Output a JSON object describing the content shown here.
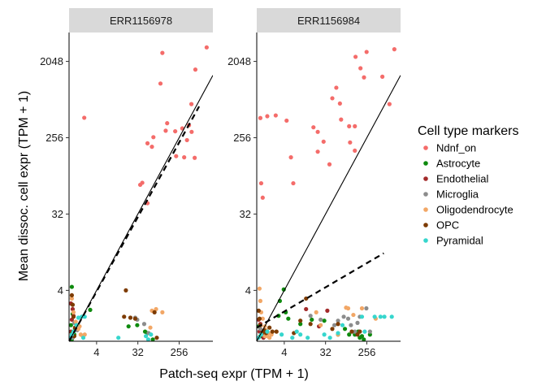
{
  "colors": {
    "Ndndf_on": "#f46c6a",
    "Astrocyte": "#0e8a0e",
    "Endothelial": "#a32a2a",
    "Microglia": "#8c8c8c",
    "Oligodendrocyte": "#f2a766",
    "OPC": "#7d3b00",
    "Pyramidal": "#36d6cd",
    "strip_fill": "#d9d9d9",
    "axis_line": "#000000"
  },
  "chart_data": {
    "type": "scatter",
    "facets": [
      "ERR1156978",
      "ERR1156984"
    ],
    "xlabel": "Patch-seq expr (TPM + 1)",
    "ylabel": "Mean dissoc. cell expr (TPM + 1)",
    "x_scale": "log2",
    "y_scale": "log2",
    "xlim": [
      1,
      1400
    ],
    "ylim": [
      1,
      4500
    ],
    "x_ticks": [
      {
        "value": 4,
        "label": "4"
      },
      {
        "value": 32,
        "label": "32"
      },
      {
        "value": 256,
        "label": "256"
      }
    ],
    "y_ticks": [
      {
        "value": 4,
        "label": "4"
      },
      {
        "value": 32,
        "label": "32"
      },
      {
        "value": 256,
        "label": "256"
      },
      {
        "value": 2048,
        "label": "2048"
      }
    ],
    "grid": false,
    "legend": {
      "title": "Cell type markers",
      "position": "right",
      "entries": [
        "Ndnf_on",
        "Astrocyte",
        "Endothelial",
        "Microglia",
        "Oligodendrocyte",
        "OPC",
        "Pyramidal"
      ],
      "color_keys": [
        "Ndndf_on",
        "Astrocyte",
        "Endothelial",
        "Microglia",
        "Oligodendrocyte",
        "OPC",
        "Pyramidal"
      ]
    },
    "reference_lines": [
      {
        "kind": "identity",
        "style": "solid",
        "slope": 1,
        "intercept": 0
      },
      {
        "kind": "fit",
        "style": "dashed"
      }
    ],
    "panels": [
      {
        "name": "ERR1156978",
        "fit_line": {
          "x": [
            1,
            700
          ],
          "y": [
            1,
            600
          ]
        },
        "series": [
          {
            "name": "Ndnf_on",
            "color_key": "Ndndf_on",
            "points": [
              [
                2.15,
                441
              ],
              [
                1024,
                3000
              ],
              [
                110,
                2580
              ],
              [
                580,
                1640
              ],
              [
                475,
                640
              ],
              [
                100,
                1120
              ],
              [
                140,
                380
              ],
              [
                130,
                310
              ],
              [
                210,
                305
              ],
              [
                300,
                330
              ],
              [
                420,
                360
              ],
              [
                480,
                300
              ],
              [
                380,
                240
              ],
              [
                65,
                200
              ],
              [
                52,
                220
              ],
              [
                70,
                260
              ],
              [
                220,
                155
              ],
              [
                330,
                150
              ],
              [
                560,
                148
              ],
              [
                36,
                71
              ],
              [
                40,
                75
              ],
              [
                52,
                43
              ]
            ]
          },
          {
            "name": "Astrocyte",
            "color_key": "Astrocyte",
            "points": [
              [
                1.15,
                4.4
              ],
              [
                1.2,
                2.1
              ],
              [
                1.1,
                1.55
              ],
              [
                1.3,
                1.2
              ],
              [
                1.22,
                1.15
              ],
              [
                1.35,
                1.4
              ],
              [
                1.15,
                1.05
              ],
              [
                2.9,
                2.35
              ],
              [
                20,
                1.5
              ],
              [
                31,
                1.55
              ],
              [
                52,
                1.25
              ],
              [
                68,
                1.05
              ],
              [
                46,
                1.3
              ]
            ]
          },
          {
            "name": "Endothelial",
            "color_key": "Endothelial",
            "points": [
              [
                1.1,
                2.8
              ],
              [
                1.2,
                2.4
              ],
              [
                1.15,
                1.8
              ],
              [
                1.25,
                2.0
              ],
              [
                1.1,
                1.3
              ]
            ]
          },
          {
            "name": "Microglia",
            "color_key": "Microglia",
            "points": [
              [
                28,
                1.9
              ],
              [
                31,
                1.8
              ],
              [
                44,
                1.6
              ],
              [
                55,
                1.25
              ],
              [
                1.3,
                1.65
              ],
              [
                1.5,
                1.35
              ],
              [
                1.2,
                1.1
              ]
            ]
          },
          {
            "name": "Oligodendrocyte",
            "color_key": "Oligodendrocyte",
            "points": [
              [
                1.15,
                3.2
              ],
              [
                1.25,
                2.2
              ],
              [
                1.4,
                1.7
              ],
              [
                1.6,
                1.4
              ],
              [
                1.8,
                1.2
              ],
              [
                2.0,
                1.15
              ],
              [
                2.2,
                1.2
              ],
              [
                1.7,
                1.5
              ],
              [
                60,
                1.45
              ],
              [
                65,
                2.3
              ],
              [
                80,
                2.4
              ],
              [
                110,
                2.2
              ]
            ]
          },
          {
            "name": "OPC",
            "color_key": "OPC",
            "points": [
              [
                1.15,
                3.5
              ],
              [
                1.2,
                2.7
              ],
              [
                1.25,
                1.95
              ],
              [
                1.35,
                1.45
              ],
              [
                1.15,
                1.25
              ],
              [
                1.3,
                1.15
              ],
              [
                17.5,
                4.0
              ],
              [
                16,
                1.95
              ],
              [
                22,
                1.9
              ],
              [
                74,
                2.2
              ],
              [
                83,
                1.1
              ],
              [
                28,
                1.85
              ]
            ]
          },
          {
            "name": "Pyramidal",
            "color_key": "Pyramidal",
            "points": [
              [
                1.6,
                1.9
              ],
              [
                1.9,
                1.95
              ],
              [
                2.2,
                1.95
              ],
              [
                1.45,
                1.55
              ],
              [
                1.25,
                1.3
              ],
              [
                1.05,
                1.1
              ],
              [
                1.15,
                1.2
              ],
              [
                2.05,
                1.1
              ],
              [
                12,
                1.1
              ],
              [
                48,
                1.15
              ],
              [
                54,
                1.05
              ],
              [
                62,
                1.2
              ]
            ]
          }
        ]
      },
      {
        "name": "ERR1156984",
        "fit_line": {
          "x": [
            1,
            600
          ],
          "y": [
            1.45,
            11
          ]
        },
        "series": [
          {
            "name": "Ndnf_on",
            "color_key": "Ndndf_on",
            "points": [
              [
                1.2,
                438
              ],
              [
                1.25,
                74
              ],
              [
                1.35,
                50
              ],
              [
                1.7,
                460
              ],
              [
                2.6,
                470
              ],
              [
                4.5,
                408
              ],
              [
                5.6,
                150
              ],
              [
                6.3,
                74
              ],
              [
                17.4,
                340
              ],
              [
                21.6,
                300
              ],
              [
                21.6,
                175
              ],
              [
                29,
                230
              ],
              [
                39,
                124
              ],
              [
                45,
                750
              ],
              [
                55,
                1000
              ],
              [
                66,
                650
              ],
              [
                70,
                420
              ],
              [
                105,
                350
              ],
              [
                110,
                225
              ],
              [
                140,
                180
              ],
              [
                145,
                2320
              ],
              [
                186,
                1700
              ],
              [
                222,
                1325
              ],
              [
                253,
                2650
              ],
              [
                560,
                1350
              ],
              [
                800,
                640
              ],
              [
                1024,
                2850
              ],
              [
                140,
                350
              ]
            ]
          },
          {
            "name": "Astrocyte",
            "color_key": "Astrocyte",
            "points": [
              [
                1.1,
                1.5
              ],
              [
                1.2,
                1.15
              ],
              [
                1.3,
                1.3
              ],
              [
                3.9,
                4.1
              ],
              [
                3.2,
                3.0
              ],
              [
                3.0,
                2.0
              ],
              [
                4.3,
                2.2
              ],
              [
                4.9,
                1.85
              ],
              [
                9,
                1.6
              ],
              [
                16,
                1.8
              ],
              [
                30,
                1.75
              ],
              [
                60,
                1.2
              ],
              [
                85,
                1.4
              ],
              [
                105,
                1.2
              ],
              [
                140,
                1.2
              ],
              [
                166,
                1.3
              ],
              [
                180,
                1.1
              ],
              [
                200,
                1.15
              ],
              [
                220,
                1.05
              ],
              [
                300,
                1.2
              ]
            ]
          },
          {
            "name": "Endothelial",
            "color_key": "Endothelial",
            "points": [
              [
                1.1,
                1.8
              ],
              [
                1.2,
                1.6
              ],
              [
                1.3,
                1.2
              ],
              [
                1.15,
                1.3
              ],
              [
                1.4,
                1.1
              ],
              [
                12,
                2.4
              ],
              [
                35,
                2.3
              ],
              [
                23,
                1.5
              ]
            ]
          },
          {
            "name": "Microglia",
            "color_key": "Microglia",
            "points": [
              [
                1.2,
                1.4
              ],
              [
                15,
                2.0
              ],
              [
                25,
                1.8
              ],
              [
                50,
                1.55
              ],
              [
                60,
                1.75
              ],
              [
                80,
                1.95
              ],
              [
                100,
                1.85
              ],
              [
                115,
                1.55
              ],
              [
                140,
                1.3
              ],
              [
                160,
                1.65
              ],
              [
                180,
                1.95
              ],
              [
                250,
                2.45
              ],
              [
                300,
                1.3
              ]
            ]
          },
          {
            "name": "Oligodendrocyte",
            "color_key": "Oligodendrocyte",
            "points": [
              [
                1.15,
                4.2
              ],
              [
                1.2,
                3.0
              ],
              [
                1.25,
                2.2
              ],
              [
                1.35,
                1.85
              ],
              [
                1.5,
                1.5
              ],
              [
                1.6,
                1.35
              ],
              [
                1.7,
                1.15
              ],
              [
                1.8,
                1.25
              ],
              [
                1.9,
                1.1
              ],
              [
                2.1,
                1.2
              ],
              [
                20,
                2.2
              ],
              [
                25,
                1.55
              ],
              [
                60,
                1.2
              ],
              [
                90,
                2.5
              ],
              [
                100,
                2.45
              ],
              [
                130,
                2.05
              ],
              [
                200,
                2.45
              ],
              [
                400,
                1.85
              ],
              [
                1.5,
                1.15
              ]
            ]
          },
          {
            "name": "OPC",
            "color_key": "OPC",
            "points": [
              [
                1.1,
                2.3
              ],
              [
                1.15,
                1.85
              ],
              [
                1.2,
                1.55
              ],
              [
                1.3,
                1.25
              ],
              [
                1.45,
                1.35
              ],
              [
                1.6,
                1.25
              ],
              [
                1.9,
                1.45
              ],
              [
                2.2,
                1.3
              ],
              [
                2.7,
                1.3
              ],
              [
                6.5,
                1.25
              ],
              [
                12,
                3.2
              ],
              [
                9,
                1.75
              ],
              [
                15,
                1.6
              ],
              [
                45,
                1.4
              ],
              [
                60,
                1.6
              ],
              [
                120,
                1.3
              ],
              [
                160,
                1.2
              ],
              [
                180,
                1.3
              ]
            ]
          },
          {
            "name": "Pyramidal",
            "color_key": "Pyramidal",
            "points": [
              [
                1.1,
                1.1
              ],
              [
                1.25,
                1.2
              ],
              [
                1.7,
                1.3
              ],
              [
                3.5,
                1.2
              ],
              [
                6,
                1.1
              ],
              [
                7.5,
                1.3
              ],
              [
                9,
                1.2
              ],
              [
                13,
                1.1
              ],
              [
                30,
                1.2
              ],
              [
                40,
                1.1
              ],
              [
                60,
                1.25
              ],
              [
                75,
                1.55
              ],
              [
                200,
                1.95
              ],
              [
                230,
                1.3
              ],
              [
                380,
                1.95
              ],
              [
                510,
                1.95
              ],
              [
                620,
                1.95
              ],
              [
                900,
                1.95
              ]
            ]
          }
        ]
      }
    ]
  }
}
